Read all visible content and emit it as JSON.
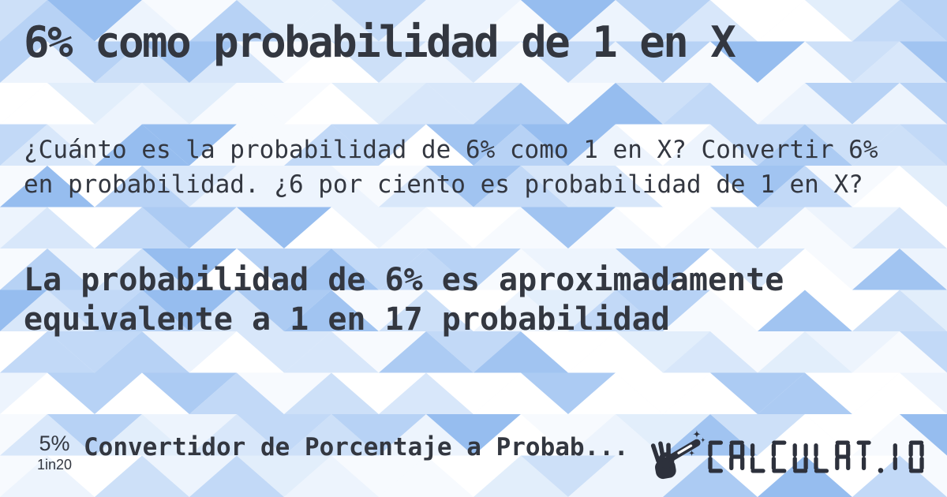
{
  "card": {
    "title": "6% como probabilidad de 1 en X",
    "question": "¿Cuánto es la probabilidad de 6% como 1 en X? Convertir 6% en probabilidad. ¿6 por ciento es probabilidad de 1 en X?",
    "answer": "La probabilidad de 6% es aproximadamente equivalente a 1 en 17 probabilidad"
  },
  "footer": {
    "badge": {
      "percent": "5%",
      "ratio": "1in20"
    },
    "category": "Convertidor de Porcentaje a Probab...",
    "logo_text": "CALCULAT.IO"
  },
  "colors": {
    "text": "#333740",
    "logo": "#2d313c",
    "background_base": "#f2f7fe",
    "pattern_palette": [
      "#ffffff",
      "#f7fafe",
      "#edf4fd",
      "#e2eefb",
      "#d8e7fa",
      "#cde0f8",
      "#c2d9f7",
      "#b7d2f5",
      "#accbf3",
      "#a1c4f1",
      "#96bdef"
    ]
  }
}
